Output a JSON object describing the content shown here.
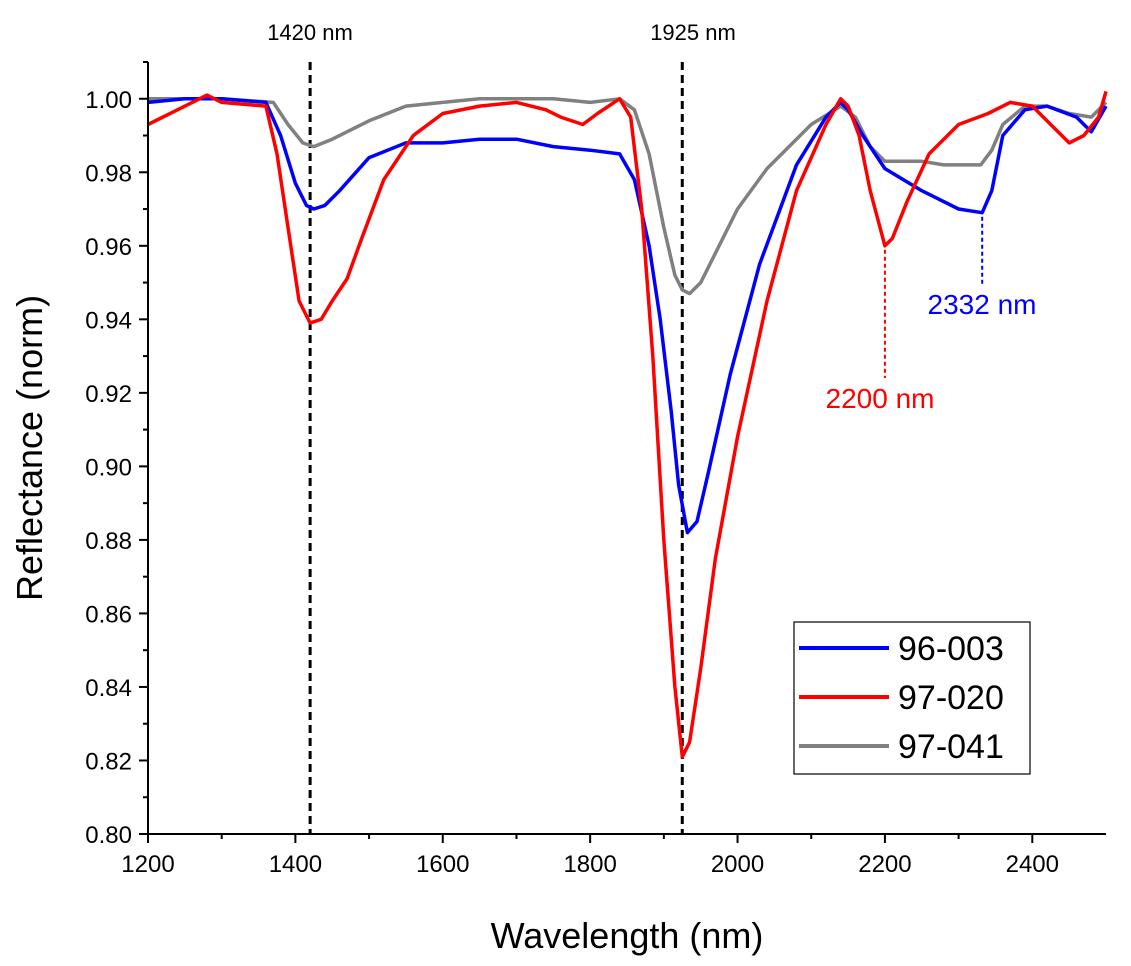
{
  "chart_data": {
    "type": "line",
    "xlabel": "Wavelength (nm)",
    "ylabel": "Reflectance (norm)",
    "xlim": [
      1200,
      2500
    ],
    "ylim": [
      0.8,
      1.01
    ],
    "x_ticks": [
      1200,
      1400,
      1600,
      1800,
      2000,
      2200,
      2400
    ],
    "x_tick_labels": [
      "1200",
      "1400",
      "1600",
      "1800",
      "2000",
      "2200",
      "2400"
    ],
    "y_ticks": [
      0.8,
      0.82,
      0.84,
      0.86,
      0.88,
      0.9,
      0.92,
      0.94,
      0.96,
      0.98,
      1.0
    ],
    "y_tick_labels": [
      "0.80",
      "0.82",
      "0.84",
      "0.86",
      "0.88",
      "0.90",
      "0.92",
      "0.94",
      "0.96",
      "0.98",
      "1.00"
    ],
    "grid": false,
    "legend_position": "bottom-right",
    "series": [
      {
        "name": "96-003",
        "color": "#0000ff",
        "points": [
          [
            1200,
            0.999
          ],
          [
            1250,
            1.0
          ],
          [
            1300,
            1.0
          ],
          [
            1360,
            0.999
          ],
          [
            1380,
            0.99
          ],
          [
            1400,
            0.977
          ],
          [
            1415,
            0.971
          ],
          [
            1425,
            0.97
          ],
          [
            1440,
            0.971
          ],
          [
            1460,
            0.975
          ],
          [
            1500,
            0.984
          ],
          [
            1550,
            0.988
          ],
          [
            1600,
            0.988
          ],
          [
            1650,
            0.989
          ],
          [
            1700,
            0.989
          ],
          [
            1750,
            0.987
          ],
          [
            1800,
            0.986
          ],
          [
            1840,
            0.985
          ],
          [
            1860,
            0.978
          ],
          [
            1880,
            0.96
          ],
          [
            1895,
            0.94
          ],
          [
            1910,
            0.915
          ],
          [
            1920,
            0.895
          ],
          [
            1932,
            0.882
          ],
          [
            1945,
            0.885
          ],
          [
            1960,
            0.898
          ],
          [
            1990,
            0.925
          ],
          [
            2030,
            0.955
          ],
          [
            2080,
            0.982
          ],
          [
            2120,
            0.995
          ],
          [
            2140,
            0.999
          ],
          [
            2150,
            0.997
          ],
          [
            2170,
            0.99
          ],
          [
            2200,
            0.981
          ],
          [
            2250,
            0.975
          ],
          [
            2300,
            0.97
          ],
          [
            2332,
            0.969
          ],
          [
            2345,
            0.975
          ],
          [
            2360,
            0.99
          ],
          [
            2390,
            0.997
          ],
          [
            2420,
            0.998
          ],
          [
            2460,
            0.995
          ],
          [
            2480,
            0.991
          ],
          [
            2500,
            0.998
          ]
        ]
      },
      {
        "name": "97-020",
        "color": "#ff0000",
        "points": [
          [
            1200,
            0.993
          ],
          [
            1240,
            0.997
          ],
          [
            1280,
            1.001
          ],
          [
            1300,
            0.999
          ],
          [
            1360,
            0.998
          ],
          [
            1375,
            0.985
          ],
          [
            1390,
            0.965
          ],
          [
            1405,
            0.945
          ],
          [
            1420,
            0.939
          ],
          [
            1435,
            0.94
          ],
          [
            1450,
            0.945
          ],
          [
            1470,
            0.951
          ],
          [
            1490,
            0.962
          ],
          [
            1520,
            0.978
          ],
          [
            1560,
            0.99
          ],
          [
            1600,
            0.996
          ],
          [
            1650,
            0.998
          ],
          [
            1700,
            0.999
          ],
          [
            1740,
            0.997
          ],
          [
            1760,
            0.995
          ],
          [
            1790,
            0.993
          ],
          [
            1810,
            0.996
          ],
          [
            1840,
            1.0
          ],
          [
            1855,
            0.995
          ],
          [
            1870,
            0.97
          ],
          [
            1885,
            0.93
          ],
          [
            1900,
            0.88
          ],
          [
            1915,
            0.84
          ],
          [
            1925,
            0.821
          ],
          [
            1935,
            0.825
          ],
          [
            1950,
            0.845
          ],
          [
            1970,
            0.875
          ],
          [
            2000,
            0.908
          ],
          [
            2040,
            0.945
          ],
          [
            2080,
            0.975
          ],
          [
            2120,
            0.993
          ],
          [
            2140,
            1.0
          ],
          [
            2150,
            0.998
          ],
          [
            2165,
            0.99
          ],
          [
            2180,
            0.975
          ],
          [
            2200,
            0.96
          ],
          [
            2210,
            0.962
          ],
          [
            2230,
            0.972
          ],
          [
            2260,
            0.985
          ],
          [
            2300,
            0.993
          ],
          [
            2340,
            0.996
          ],
          [
            2370,
            0.999
          ],
          [
            2400,
            0.998
          ],
          [
            2430,
            0.992
          ],
          [
            2450,
            0.988
          ],
          [
            2470,
            0.99
          ],
          [
            2490,
            0.995
          ],
          [
            2500,
            1.002
          ]
        ]
      },
      {
        "name": "97-041",
        "color": "#808080",
        "points": [
          [
            1200,
            1.0
          ],
          [
            1300,
            1.0
          ],
          [
            1370,
            0.999
          ],
          [
            1390,
            0.993
          ],
          [
            1410,
            0.988
          ],
          [
            1425,
            0.987
          ],
          [
            1450,
            0.989
          ],
          [
            1500,
            0.994
          ],
          [
            1550,
            0.998
          ],
          [
            1600,
            0.999
          ],
          [
            1650,
            1.0
          ],
          [
            1700,
            1.0
          ],
          [
            1750,
            1.0
          ],
          [
            1800,
            0.999
          ],
          [
            1840,
            1.0
          ],
          [
            1860,
            0.997
          ],
          [
            1880,
            0.985
          ],
          [
            1900,
            0.965
          ],
          [
            1915,
            0.952
          ],
          [
            1925,
            0.948
          ],
          [
            1935,
            0.947
          ],
          [
            1950,
            0.95
          ],
          [
            1970,
            0.958
          ],
          [
            2000,
            0.97
          ],
          [
            2040,
            0.981
          ],
          [
            2100,
            0.993
          ],
          [
            2140,
            0.998
          ],
          [
            2160,
            0.995
          ],
          [
            2180,
            0.987
          ],
          [
            2200,
            0.983
          ],
          [
            2220,
            0.983
          ],
          [
            2250,
            0.983
          ],
          [
            2280,
            0.982
          ],
          [
            2300,
            0.982
          ],
          [
            2330,
            0.982
          ],
          [
            2345,
            0.986
          ],
          [
            2360,
            0.993
          ],
          [
            2390,
            0.998
          ],
          [
            2420,
            0.998
          ],
          [
            2450,
            0.996
          ],
          [
            2480,
            0.995
          ],
          [
            2500,
            0.999
          ]
        ]
      }
    ],
    "annotations": {
      "line_1420": {
        "label": "1420 nm",
        "x": 1420
      },
      "line_1925": {
        "label": "1925 nm",
        "x": 1925
      },
      "peak_2200": {
        "label": "2200 nm",
        "x": 2200,
        "y": 0.96,
        "color": "#ff0000"
      },
      "peak_2332": {
        "label": "2332 nm",
        "x": 2332,
        "y": 0.969,
        "color": "#0000ff"
      }
    }
  }
}
